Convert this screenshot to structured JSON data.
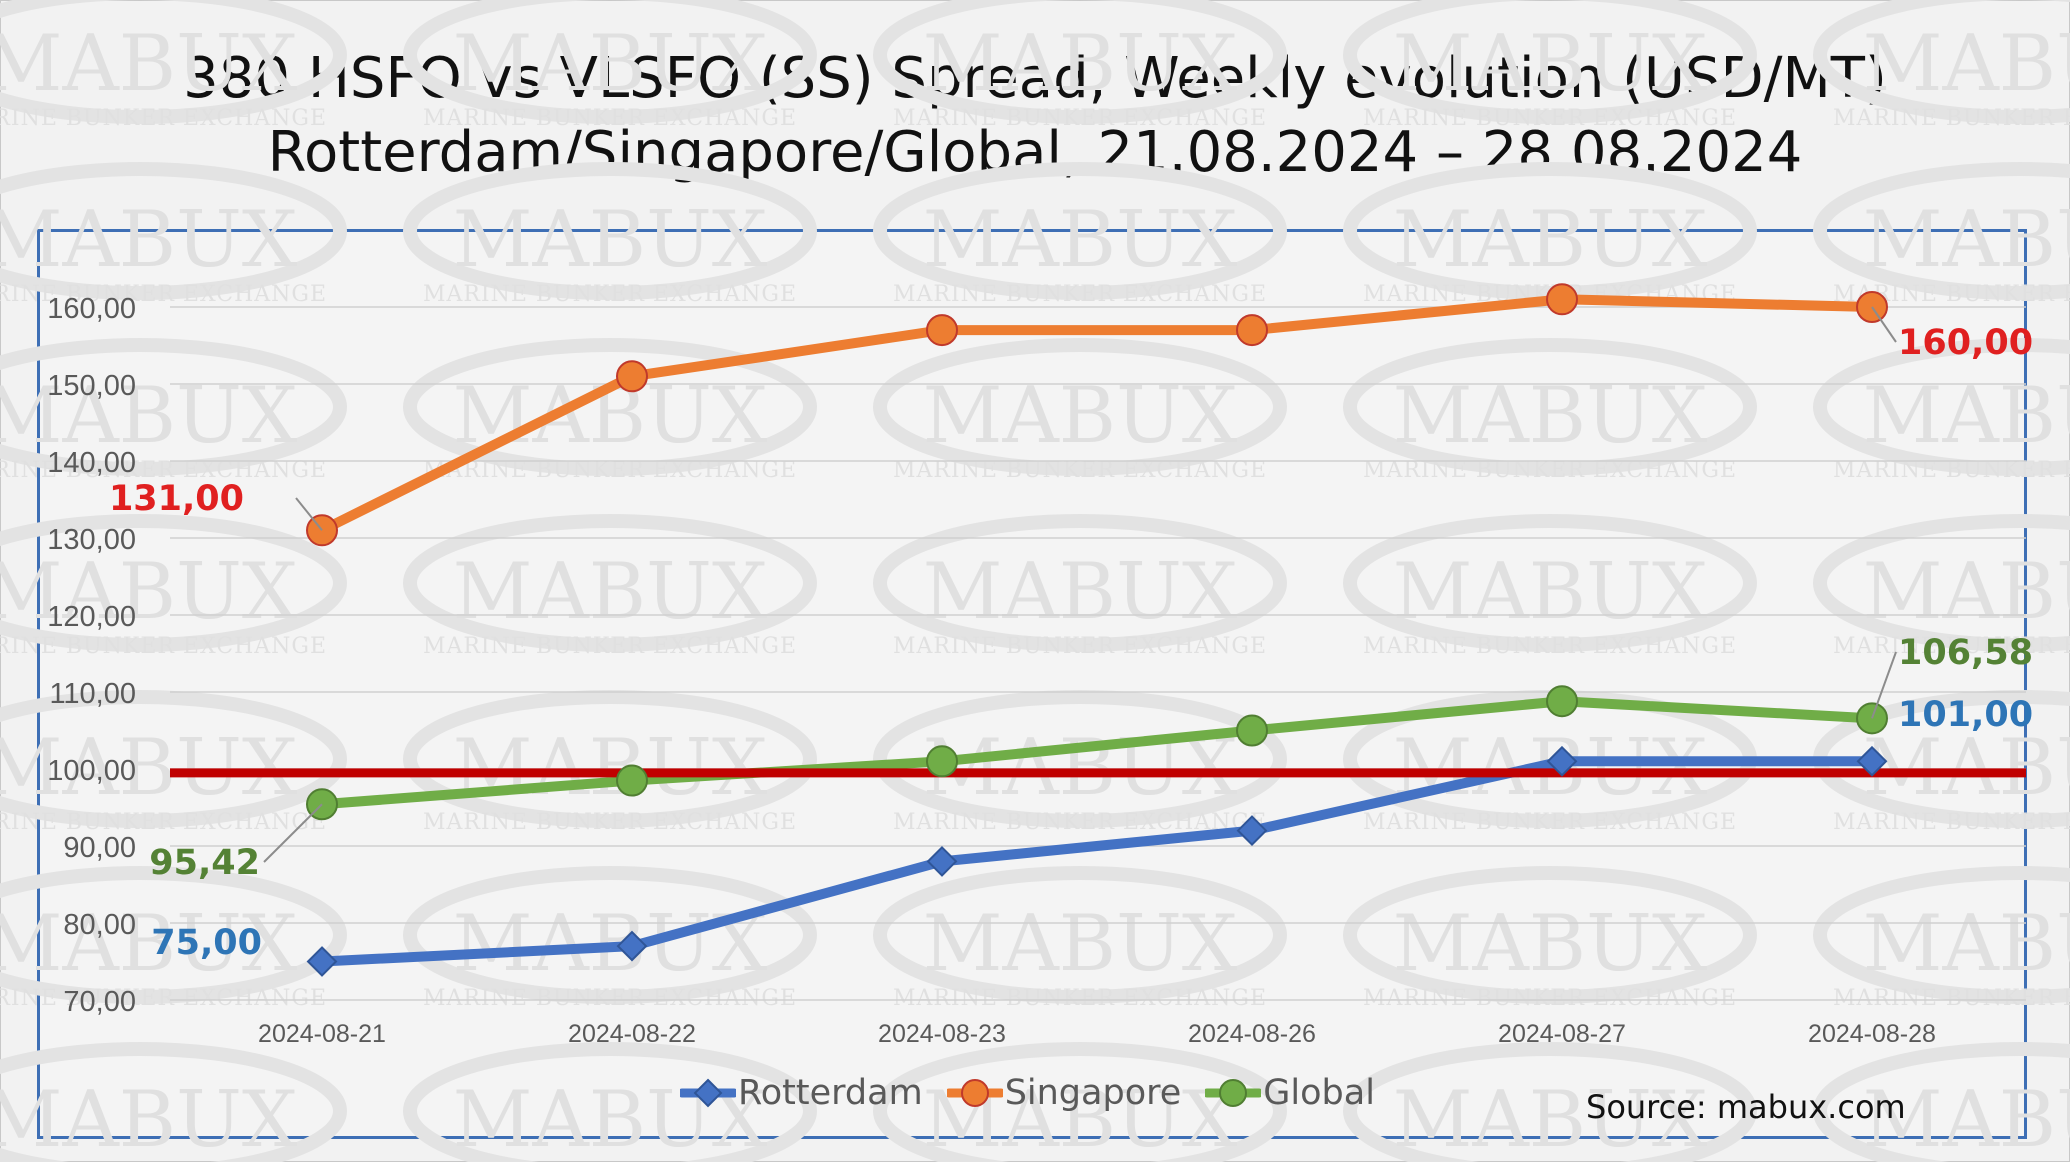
{
  "title_line1": "380 HSFO vs VLSFO (SS) Spread, Weekly evolution (USD/MT)",
  "title_line2": "Rotterdam/Singapore/Global, 21.08.2024 – 28.08.2024",
  "source": "Source: mabux.com",
  "watermark": {
    "brand": "MABUX",
    "sub": "MARINE BUNKER EXCHANGE"
  },
  "colors": {
    "rotterdam": "#4472c4",
    "singapore": "#ed7d31",
    "global": "#70ad47",
    "reference_line": "#c00000",
    "label_red": "#e02020",
    "label_blue": "#2e75b6",
    "label_green": "#548235",
    "frame": "#3e6fb5"
  },
  "chart_data": {
    "type": "line",
    "categories": [
      "2024-08-21",
      "2024-08-22",
      "2024-08-23",
      "2024-08-26",
      "2024-08-27",
      "2024-08-28"
    ],
    "y_ticks": [
      "70,00",
      "80,00",
      "90,00",
      "100,00",
      "110,00",
      "120,00",
      "130,00",
      "140,00",
      "150,00",
      "160,00"
    ],
    "ylim": [
      70,
      170
    ],
    "grid": true,
    "legend_position": "bottom",
    "reference_line": {
      "value": 99.5
    },
    "series": [
      {
        "name": "Rotterdam",
        "marker": "diamond",
        "values": [
          75.0,
          77.0,
          88.0,
          92.0,
          101.0,
          101.0
        ],
        "labels": [
          {
            "index": 0,
            "text": "75,00"
          },
          {
            "index": 5,
            "text": "101,00"
          }
        ]
      },
      {
        "name": "Singapore",
        "marker": "circle",
        "values": [
          131.0,
          151.0,
          157.0,
          157.0,
          161.0,
          160.0
        ],
        "labels": [
          {
            "index": 0,
            "text": "131,00"
          },
          {
            "index": 5,
            "text": "160,00"
          }
        ]
      },
      {
        "name": "Global",
        "marker": "circle",
        "values": [
          95.42,
          98.5,
          101.0,
          105.0,
          108.8,
          106.58
        ],
        "labels": [
          {
            "index": 0,
            "text": "95,42"
          },
          {
            "index": 5,
            "text": "106,58"
          }
        ]
      }
    ]
  }
}
